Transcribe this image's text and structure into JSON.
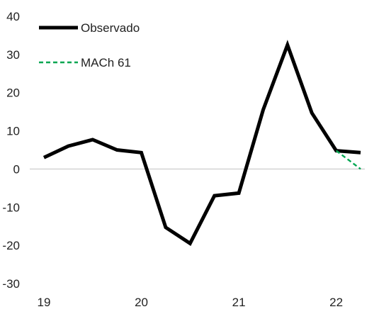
{
  "chart_data": {
    "type": "line",
    "title": "",
    "xlabel": "",
    "ylabel": "",
    "x_tick_labels": [
      "19",
      "20",
      "21",
      "22"
    ],
    "x_ticks": [
      2019,
      2020,
      2021,
      2022
    ],
    "xlim": [
      2019,
      2022.25
    ],
    "ylim": [
      -30,
      40
    ],
    "y_ticks": [
      -30,
      -20,
      -10,
      0,
      10,
      20,
      30,
      40
    ],
    "y_tick_labels": [
      "-30",
      "-20",
      "-10",
      "0",
      "10",
      "20",
      "30",
      "40"
    ],
    "grid": false,
    "zero_line": true,
    "legend": {
      "position": "top-left",
      "entries": [
        "Observado",
        "MACh 61"
      ]
    },
    "series": [
      {
        "name": "Observado",
        "color": "#000000",
        "style": "solid",
        "x": [
          2019.0,
          2019.25,
          2019.5,
          2019.75,
          2020.0,
          2020.25,
          2020.5,
          2020.75,
          2021.0,
          2021.25,
          2021.5,
          2021.75,
          2022.0,
          2022.25
        ],
        "values": [
          3,
          6,
          7.7,
          5,
          4.3,
          -15.3,
          -19.5,
          -7,
          -6.3,
          15.5,
          32.5,
          14.7,
          4.8,
          4.3
        ]
      },
      {
        "name": "MACh 61",
        "color": "#00a651",
        "style": "dashed",
        "x": [
          2022.0,
          2022.25
        ],
        "values": [
          4.8,
          0
        ]
      }
    ]
  }
}
